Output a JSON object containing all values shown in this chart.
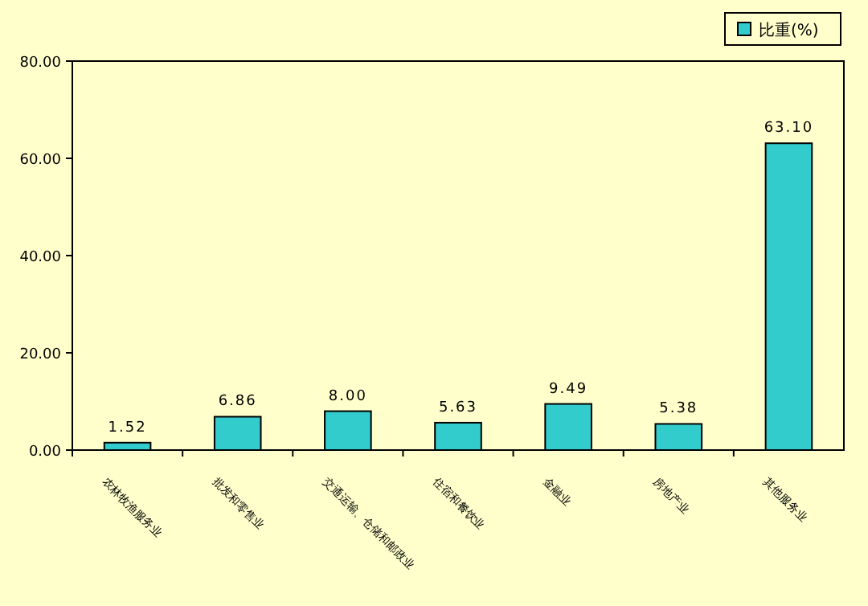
{
  "chart_data": {
    "type": "bar",
    "categories": [
      "农林牧渔服务业",
      "批发和零售业",
      "交通运输、仓储和邮政业",
      "住宿和餐饮业",
      "金融业",
      "房地产业",
      "其他服务业"
    ],
    "series": [
      {
        "name": "比重(%)",
        "color": "#33cccc",
        "values": [
          1.52,
          6.86,
          8.0,
          5.63,
          9.49,
          5.38,
          63.1
        ]
      }
    ],
    "value_labels": [
      "1.52",
      "6.86",
      "8.00",
      "5.63",
      "9.49",
      "5.38",
      "63.10"
    ],
    "ylim": [
      0,
      80
    ],
    "yticks": [
      {
        "value": 0,
        "label": "0.00"
      },
      {
        "value": 20,
        "label": "20.00"
      },
      {
        "value": 40,
        "label": "40.00"
      },
      {
        "value": 60,
        "label": "60.00"
      },
      {
        "value": 80,
        "label": "80.00"
      }
    ],
    "legend": "top right"
  }
}
